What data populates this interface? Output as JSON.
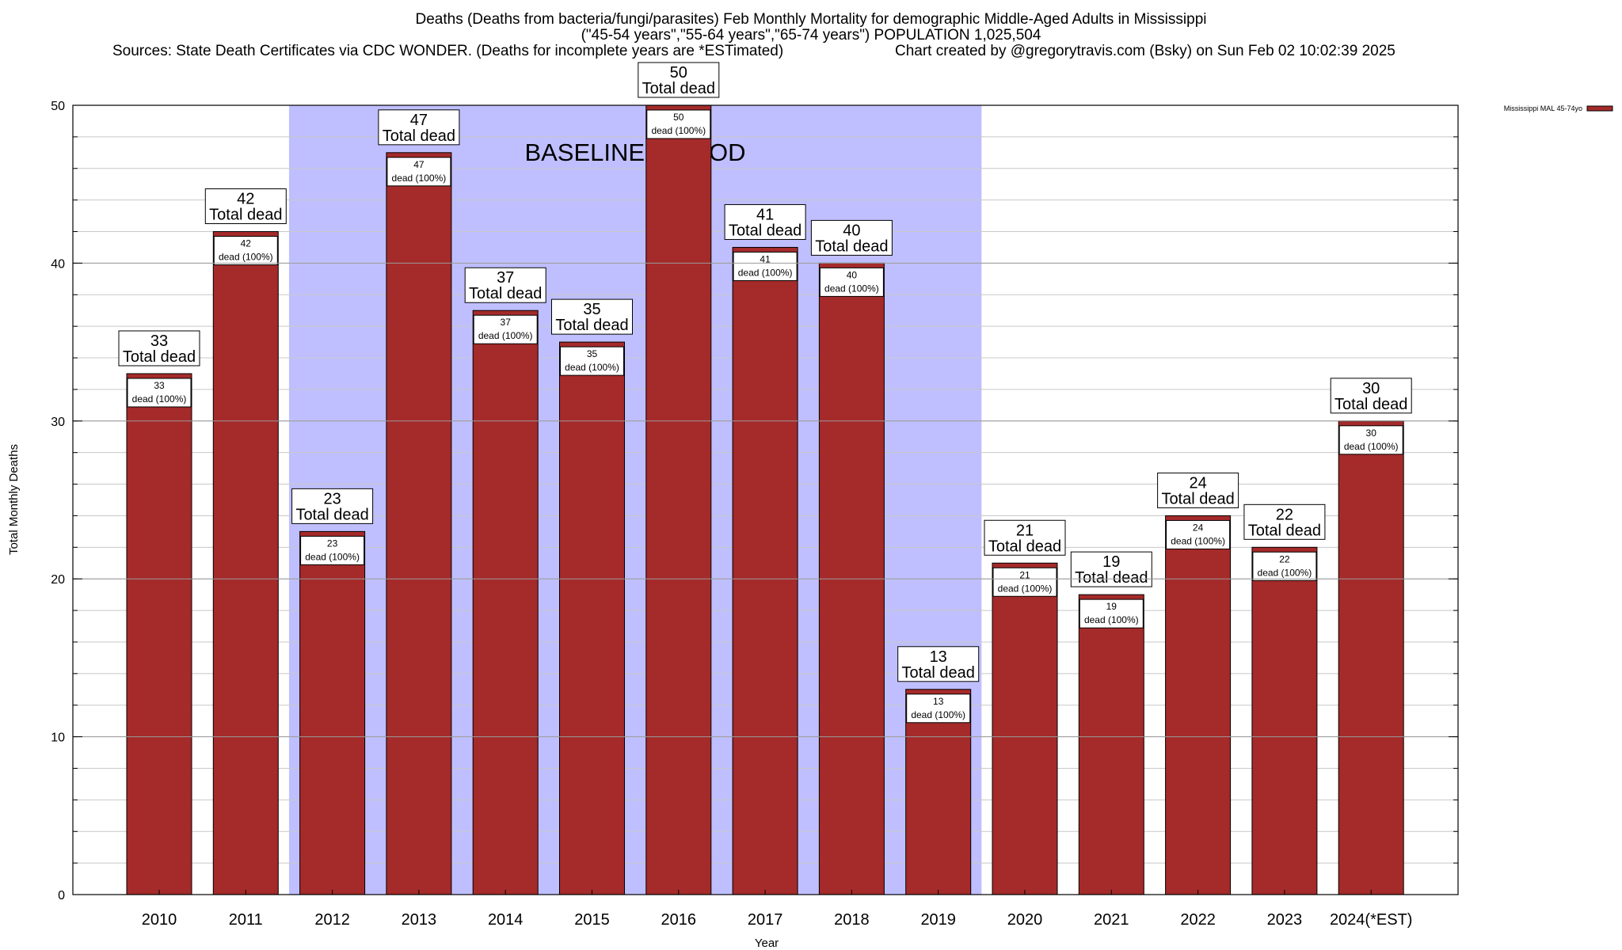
{
  "title_line1": "Deaths (Deaths from bacteria/fungi/parasites) Feb Monthly Mortality for demographic Middle-Aged Adults in Mississippi",
  "title_line2": "(\"45-54 years\",\"55-64 years\",\"65-74 years\") POPULATION 1,025,504",
  "sources": "Sources: State Death Certificates via CDC WONDER. (Deaths for incomplete years are *ESTimated)",
  "credit": "Chart created by @gregorytravis.com (Bsky) on Sun Feb 02 10:02:39 2025",
  "chart_data": {
    "type": "bar",
    "xlabel": "Year",
    "ylabel": "Total Monthly Deaths",
    "ylim": [
      0,
      50
    ],
    "yticks": [
      0,
      10,
      20,
      30,
      40,
      50
    ],
    "categories": [
      "2010",
      "2011",
      "2012",
      "2013",
      "2014",
      "2015",
      "2016",
      "2017",
      "2018",
      "2019",
      "2020",
      "2021",
      "2022",
      "2023",
      "2024(*EST)"
    ],
    "series": [
      {
        "name": "Mississippi MAL 45-74yo",
        "values": [
          33,
          42,
          23,
          47,
          37,
          35,
          50,
          41,
          40,
          13,
          21,
          19,
          24,
          22,
          30
        ]
      }
    ],
    "total_label": "Total dead",
    "inner_label_suffix": "dead (100%)",
    "baseline": {
      "label": "BASELINE PERIOD",
      "from": "2012",
      "to": "2019"
    },
    "colors": {
      "bar": "#a52a2a",
      "baseline": "#bfbfff",
      "grid": "#c8c8c8"
    },
    "legend_position": "top-right",
    "grid": true
  }
}
